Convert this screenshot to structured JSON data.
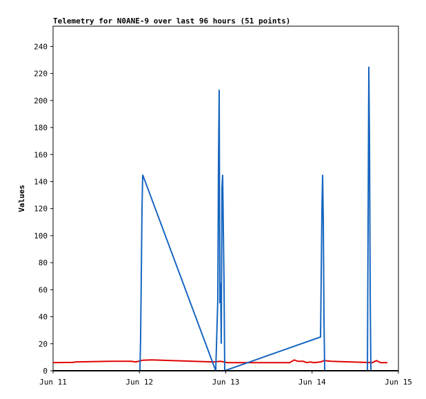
{
  "chart_data": {
    "type": "line",
    "title": "Telemetry for N0ANE-9 over last 96 hours (51 points)",
    "y_label": "Values",
    "xlim": [
      11,
      15
    ],
    "xticks": [
      {
        "value": 11,
        "label": "Jun 11"
      },
      {
        "value": 12,
        "label": "Jun 12"
      },
      {
        "value": 13,
        "label": "Jun 13"
      },
      {
        "value": 14,
        "label": "Jun 14"
      },
      {
        "value": 15,
        "label": "Jun 15"
      }
    ],
    "ylim": [
      0,
      255
    ],
    "yticks": [
      0,
      20,
      40,
      60,
      80,
      100,
      120,
      140,
      160,
      180,
      200,
      220,
      240
    ],
    "series": [
      {
        "color": "#e00000",
        "x": [
          11.0,
          11.224,
          11.263,
          11.663,
          11.902,
          11.958,
          12.038,
          12.142,
          12.381,
          12.621,
          12.86,
          12.94,
          13.02,
          13.739,
          13.794,
          13.834,
          13.898,
          13.938,
          13.978,
          14.018,
          14.098,
          14.138,
          14.218,
          14.457,
          14.697,
          14.745,
          14.792,
          14.872
        ],
        "values": [
          6,
          6.2,
          6.5,
          7,
          7,
          6.5,
          7.8,
          8,
          7.5,
          7,
          6.5,
          7,
          6,
          6,
          8,
          7,
          7,
          6,
          6.5,
          6,
          6.5,
          7.5,
          7,
          6.5,
          6,
          7.5,
          6,
          6
        ]
      },
      {
        "color": "#1565c0",
        "x": [
          12.006,
          12.014,
          12.022,
          12.03,
          12.038,
          12.884,
          12.908,
          12.916,
          12.924,
          12.932,
          12.94,
          12.948,
          12.956,
          12.964,
          12.98,
          12.988,
          14.098,
          14.106,
          14.114,
          14.122,
          14.13,
          14.138,
          14.146,
          14.641,
          14.649,
          14.657,
          14.665,
          14.673,
          14.681
        ],
        "values": [
          0,
          25,
          72,
          120,
          145,
          0,
          53,
          155,
          208,
          50,
          65,
          20,
          135,
          145,
          65,
          0,
          25,
          72,
          120,
          145,
          110,
          37,
          0,
          0,
          112,
          225,
          168,
          57,
          0
        ]
      }
    ]
  }
}
